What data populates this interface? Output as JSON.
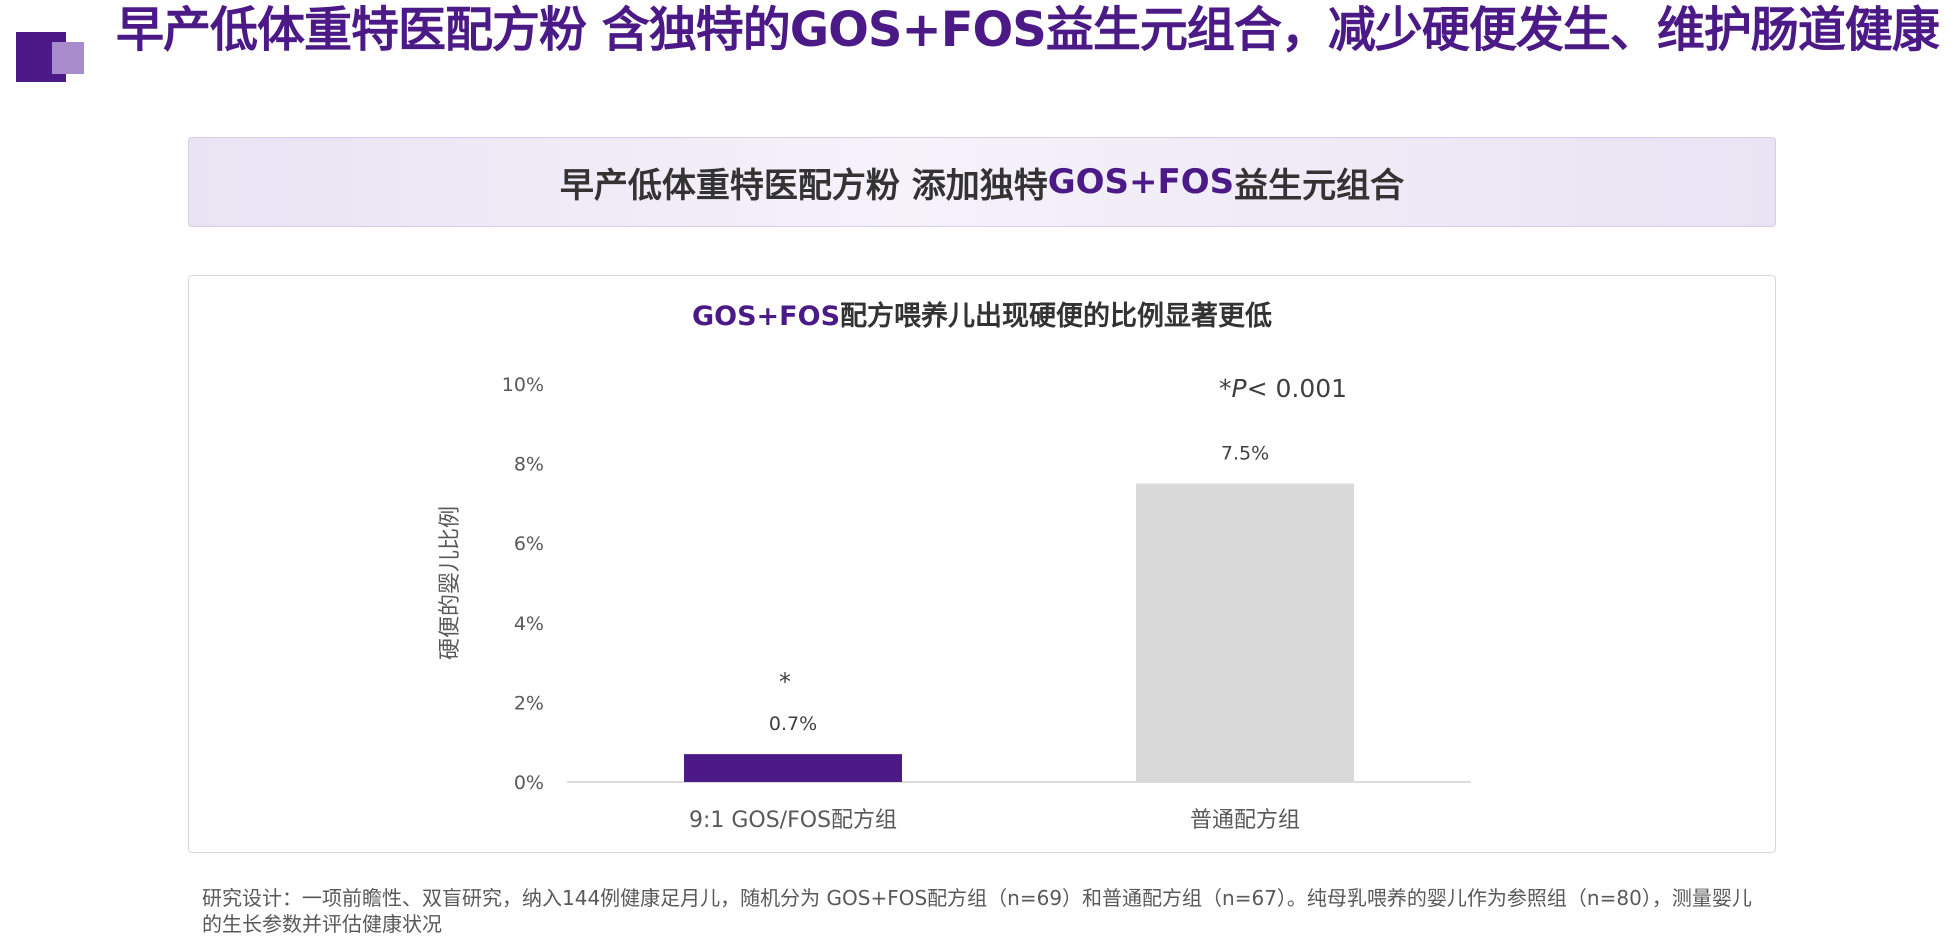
{
  "page": {
    "title": "早产低体重特医配方粉 含独特的GOS+FOS益生元组合，减少硬便发生、维护肠道健康"
  },
  "banner": {
    "prefix": "早产低体重特医配方粉 添加独特 ",
    "highlight": "GOS+FOS",
    "suffix": "益生元组合"
  },
  "chart_data": {
    "type": "bar",
    "title_highlight": "GOS+FOS",
    "title_rest": "配方喂养儿出现硬便的比例显著更低",
    "categories": [
      "9:1 GOS/FOS配方组",
      "普通配方组"
    ],
    "values": [
      0.7,
      7.5
    ],
    "data_labels": [
      "0.7%",
      "7.5%"
    ],
    "bar_colors": [
      "#4b1a86",
      "#d9d9d9"
    ],
    "ylabel": "硬便的婴儿比例",
    "ylim": [
      0,
      10
    ],
    "yticks": [
      0,
      2,
      4,
      6,
      8,
      10
    ],
    "ytick_labels": [
      "0%",
      "2%",
      "4%",
      "6%",
      "8%",
      "10%"
    ],
    "significance_marker": "*",
    "pvalue_star": "*",
    "pvalue_p": "P",
    "pvalue_rest": "< 0.001",
    "grid": false,
    "legend": "none"
  },
  "footnote": "研究设计：一项前瞻性、双盲研究，纳入144例健康足月儿，随机分为 GOS+FOS配方组（n=69）和普通配方组（n=67）。纯母乳喂养的婴儿作为参照组（n=80），测量婴儿的生长参数并评估健康状况",
  "colors": {
    "brand_purple": "#4b1a86",
    "brand_light_purple": "#a88bcb",
    "bar_gray": "#d9d9d9"
  }
}
